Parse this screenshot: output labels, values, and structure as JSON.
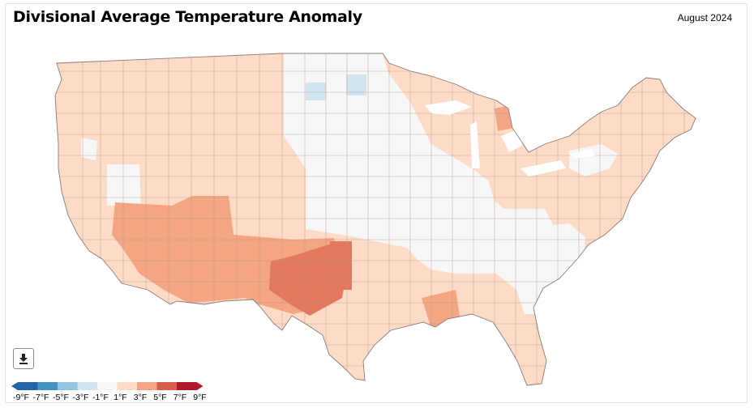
{
  "header": {
    "title": "Divisional Average Temperature Anomaly",
    "date": "August 2024"
  },
  "download": {
    "icon": "download-icon"
  },
  "legend": {
    "colors": [
      "#2166ac",
      "#4393c3",
      "#92c5de",
      "#d1e5f0",
      "#f7f7f7",
      "#fddbc7",
      "#f4a582",
      "#d6604d",
      "#b2182b"
    ],
    "labels": [
      "-9°F",
      "-7°F",
      "-5°F",
      "-3°F",
      "-1°F",
      "1°F",
      "3°F",
      "5°F",
      "7°F",
      "9°F"
    ]
  }
}
